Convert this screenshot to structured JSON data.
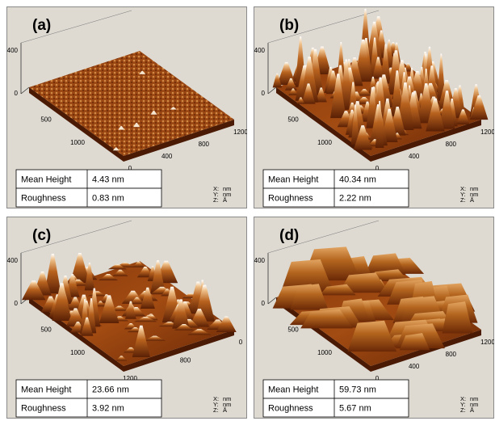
{
  "panels": [
    {
      "label": "(a)",
      "z_ticks": [
        "400",
        "0"
      ],
      "left_ticks": [
        "500",
        "1000"
      ],
      "right_ticks": [
        "0",
        "400",
        "800",
        "1200"
      ],
      "table": {
        "rows": [
          [
            "Mean Height",
            "4.43 nm"
          ],
          [
            "Roughness",
            "0.83 nm"
          ]
        ]
      },
      "units": [
        [
          "X:",
          "nm"
        ],
        [
          "Y:",
          "nm"
        ],
        [
          "Z:",
          "Å"
        ]
      ]
    },
    {
      "label": "(b)",
      "z_ticks": [
        "400",
        "0"
      ],
      "left_ticks": [
        "500",
        "1000"
      ],
      "right_ticks": [
        "0",
        "400",
        "800",
        "1200"
      ],
      "table": {
        "rows": [
          [
            "Mean Height",
            "40.34 nm"
          ],
          [
            "Roughness",
            "2.22 nm"
          ]
        ]
      },
      "units": [
        [
          "X:",
          "nm"
        ],
        [
          "Y:",
          "nm"
        ],
        [
          "Z:",
          "Å"
        ]
      ]
    },
    {
      "label": "(c)",
      "z_ticks": [
        "400",
        "0"
      ],
      "left_ticks": [
        "500",
        "1000"
      ],
      "right_ticks": [
        "1200",
        "800",
        "0"
      ],
      "table": {
        "rows": [
          [
            "Mean Height",
            "23.66 nm"
          ],
          [
            "Roughness",
            "3.92 nm"
          ]
        ]
      },
      "units": [
        [
          "X:",
          "nm"
        ],
        [
          "Y:",
          "nm"
        ],
        [
          "Z:",
          "Å"
        ]
      ]
    },
    {
      "label": "(d)",
      "z_ticks": [
        "400",
        "0"
      ],
      "left_ticks": [
        "500",
        "1000"
      ],
      "right_ticks": [
        "0",
        "400",
        "800",
        "1200"
      ],
      "table": {
        "rows": [
          [
            "Mean Height",
            "59.73 nm"
          ],
          [
            "Roughness",
            "5.67 nm"
          ]
        ]
      },
      "units": [
        [
          "X:",
          "nm"
        ],
        [
          "Y:",
          "nm"
        ],
        [
          "Z:",
          "Å"
        ]
      ]
    }
  ]
}
